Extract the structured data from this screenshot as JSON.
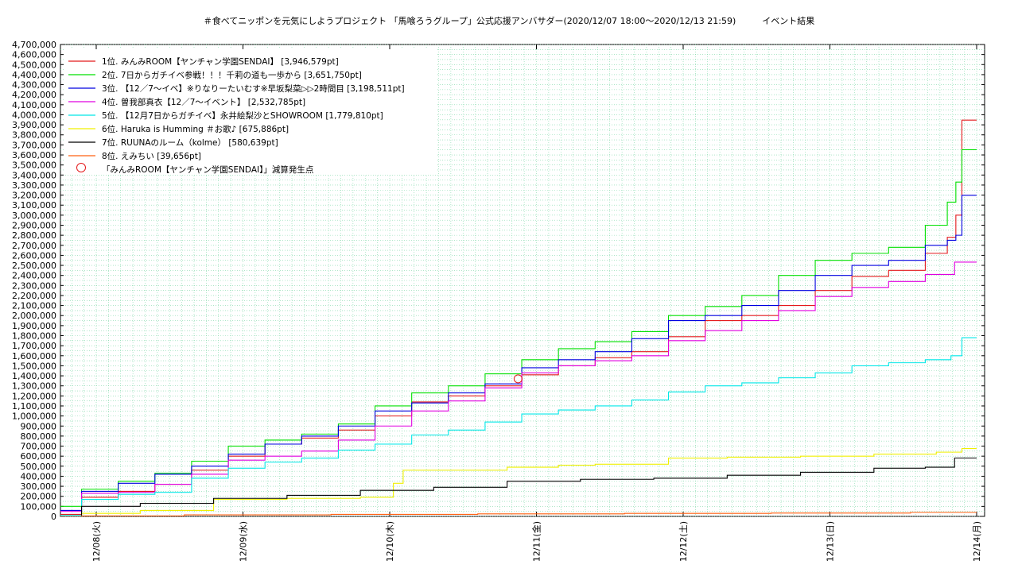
{
  "title": "＃食べてニッポンを元気にしようプロジェクト 「馬喰ろうグループ」公式応援アンバサダー(2020/12/07 18:00〜2020/12/13 21:59)　　　イベント結果",
  "chart_data": {
    "type": "line",
    "title": "＃食べてニッポンを元気にしようプロジェクト 「馬喰ろうグループ」公式応援アンバサダー(2020/12/07 18:00〜2020/12/13 21:59)　　　イベント結果",
    "xlabel": "",
    "ylabel": "",
    "xlim": [
      "2020-12-07 18:00",
      "2020-12-14 00:00"
    ],
    "ylim": [
      0,
      4700000
    ],
    "y_ticks": [
      0,
      100000,
      200000,
      300000,
      400000,
      500000,
      600000,
      700000,
      800000,
      900000,
      1000000,
      1100000,
      1200000,
      1300000,
      1400000,
      1500000,
      1600000,
      1700000,
      1800000,
      1900000,
      2000000,
      2100000,
      2200000,
      2300000,
      2400000,
      2500000,
      2600000,
      2700000,
      2800000,
      2900000,
      3000000,
      3100000,
      3200000,
      3300000,
      3400000,
      3500000,
      3600000,
      3700000,
      3800000,
      3900000,
      4000000,
      4100000,
      4200000,
      4300000,
      4400000,
      4500000,
      4600000,
      4700000
    ],
    "y_tick_labels": [
      "0",
      "100,000",
      "200,000",
      "300,000",
      "400,000",
      "500,000",
      "600,000",
      "700,000",
      "800,000",
      "900,000",
      "1,000,000",
      "1,100,000",
      "1,200,000",
      "1,300,000",
      "1,400,000",
      "1,500,000",
      "1,600,000",
      "1,700,000",
      "1,800,000",
      "1,900,000",
      "2,000,000",
      "2,100,000",
      "2,200,000",
      "2,300,000",
      "2,400,000",
      "2,500,000",
      "2,600,000",
      "2,700,000",
      "2,800,000",
      "2,900,000",
      "3,000,000",
      "3,100,000",
      "3,200,000",
      "3,300,000",
      "3,400,000",
      "3,500,000",
      "3,600,000",
      "3,700,000",
      "3,800,000",
      "3,900,000",
      "4,000,000",
      "4,100,000",
      "4,200,000",
      "4,300,000",
      "4,400,000",
      "4,500,000",
      "4,600,000",
      "4,700,000"
    ],
    "x_ticks": [
      {
        "x": "2020-12-08 00:00",
        "label": "12/08(火)"
      },
      {
        "x": "2020-12-09 00:00",
        "label": "12/09(水)"
      },
      {
        "x": "2020-12-10 00:00",
        "label": "12/10(木)"
      },
      {
        "x": "2020-12-11 00:00",
        "label": "12/11(金)"
      },
      {
        "x": "2020-12-12 00:00",
        "label": "12/12(土)"
      },
      {
        "x": "2020-12-13 00:00",
        "label": "12/13(日)"
      },
      {
        "x": "2020-12-14 00:00",
        "label": "12/14(月)"
      }
    ],
    "grid": true,
    "legend_position": "top-left",
    "series": [
      {
        "name": "1位. みんみROOM【ヤンチャン学園SENDAI】 [3,946,579pt]",
        "color": "#e41a1c",
        "x": [
          "2020-12-07 18:00",
          "2020-12-08 00:00",
          "2020-12-08 06:00",
          "2020-12-08 12:00",
          "2020-12-08 18:00",
          "2020-12-09 00:00",
          "2020-12-09 06:00",
          "2020-12-09 12:00",
          "2020-12-09 18:00",
          "2020-12-10 00:00",
          "2020-12-10 06:00",
          "2020-12-10 12:00",
          "2020-12-10 18:00",
          "2020-12-11 00:00",
          "2020-12-11 06:00",
          "2020-12-11 12:00",
          "2020-12-11 18:00",
          "2020-12-12 00:00",
          "2020-12-12 06:00",
          "2020-12-12 12:00",
          "2020-12-12 18:00",
          "2020-12-13 00:00",
          "2020-12-13 06:00",
          "2020-12-13 12:00",
          "2020-12-13 18:00",
          "2020-12-13 20:00",
          "2020-12-13 21:00",
          "2020-12-13 21:59",
          "2020-12-14 00:00"
        ],
        "y": [
          20000,
          190000,
          250000,
          320000,
          460000,
          600000,
          720000,
          780000,
          860000,
          1000000,
          1140000,
          1200000,
          1300000,
          1410000,
          1500000,
          1580000,
          1640000,
          1790000,
          1950000,
          2000000,
          2100000,
          2250000,
          2390000,
          2450000,
          2620000,
          2780000,
          3000000,
          3946579,
          3946579
        ]
      },
      {
        "name": "2位. 7日からガチイベ参戦！！！千莉の道も一歩から [3,651,750pt]",
        "color": "#00e000",
        "x": [
          "2020-12-07 18:00",
          "2020-12-08 00:00",
          "2020-12-08 06:00",
          "2020-12-08 12:00",
          "2020-12-08 18:00",
          "2020-12-09 00:00",
          "2020-12-09 06:00",
          "2020-12-09 12:00",
          "2020-12-09 18:00",
          "2020-12-10 00:00",
          "2020-12-10 06:00",
          "2020-12-10 12:00",
          "2020-12-10 18:00",
          "2020-12-11 00:00",
          "2020-12-11 06:00",
          "2020-12-11 12:00",
          "2020-12-11 18:00",
          "2020-12-12 00:00",
          "2020-12-12 06:00",
          "2020-12-12 12:00",
          "2020-12-12 18:00",
          "2020-12-13 00:00",
          "2020-12-13 06:00",
          "2020-12-13 12:00",
          "2020-12-13 18:00",
          "2020-12-13 20:00",
          "2020-12-13 21:00",
          "2020-12-13 21:59",
          "2020-12-14 00:00"
        ],
        "y": [
          100000,
          270000,
          350000,
          430000,
          550000,
          700000,
          760000,
          820000,
          920000,
          1100000,
          1230000,
          1300000,
          1420000,
          1560000,
          1670000,
          1740000,
          1840000,
          2000000,
          2090000,
          2200000,
          2400000,
          2550000,
          2620000,
          2680000,
          2900000,
          3130000,
          3330000,
          3651750,
          3651750
        ]
      },
      {
        "name": "3位. 【12／7〜イベ】※りなりーたいむす※早坂梨菜▷▷2時間目 [3,198,511pt]",
        "color": "#0000e0",
        "x": [
          "2020-12-07 18:00",
          "2020-12-08 00:00",
          "2020-12-08 06:00",
          "2020-12-08 12:00",
          "2020-12-08 18:00",
          "2020-12-09 00:00",
          "2020-12-09 06:00",
          "2020-12-09 12:00",
          "2020-12-09 18:00",
          "2020-12-10 00:00",
          "2020-12-10 06:00",
          "2020-12-10 12:00",
          "2020-12-10 18:00",
          "2020-12-11 00:00",
          "2020-12-11 06:00",
          "2020-12-11 12:00",
          "2020-12-11 18:00",
          "2020-12-12 00:00",
          "2020-12-12 06:00",
          "2020-12-12 12:00",
          "2020-12-12 18:00",
          "2020-12-13 00:00",
          "2020-12-13 06:00",
          "2020-12-13 12:00",
          "2020-12-13 18:00",
          "2020-12-13 20:00",
          "2020-12-13 21:00",
          "2020-12-13 21:59",
          "2020-12-14 00:00"
        ],
        "y": [
          60000,
          250000,
          330000,
          420000,
          500000,
          620000,
          720000,
          800000,
          900000,
          1050000,
          1130000,
          1230000,
          1320000,
          1480000,
          1560000,
          1640000,
          1770000,
          1950000,
          2000000,
          2100000,
          2250000,
          2400000,
          2500000,
          2550000,
          2700000,
          2750000,
          2800000,
          3198511,
          3198511
        ]
      },
      {
        "name": "4位. 曽我部真衣【12／7〜イベント】 [2,532,785pt]",
        "color": "#e000e0",
        "x": [
          "2020-12-07 18:00",
          "2020-12-08 00:00",
          "2020-12-08 06:00",
          "2020-12-08 12:00",
          "2020-12-08 18:00",
          "2020-12-09 00:00",
          "2020-12-09 06:00",
          "2020-12-09 12:00",
          "2020-12-09 18:00",
          "2020-12-10 00:00",
          "2020-12-10 06:00",
          "2020-12-10 12:00",
          "2020-12-10 18:00",
          "2020-12-11 00:00",
          "2020-12-11 06:00",
          "2020-12-11 12:00",
          "2020-12-11 18:00",
          "2020-12-12 00:00",
          "2020-12-12 06:00",
          "2020-12-12 12:00",
          "2020-12-12 18:00",
          "2020-12-13 00:00",
          "2020-12-13 06:00",
          "2020-12-13 12:00",
          "2020-12-13 18:00",
          "2020-12-13 21:59",
          "2020-12-14 00:00"
        ],
        "y": [
          50000,
          230000,
          240000,
          320000,
          420000,
          560000,
          600000,
          650000,
          760000,
          900000,
          1050000,
          1150000,
          1280000,
          1430000,
          1500000,
          1550000,
          1600000,
          1750000,
          1850000,
          1950000,
          2050000,
          2190000,
          2280000,
          2340000,
          2410000,
          2532785,
          2532785
        ]
      },
      {
        "name": "5位. 【12月7日からガチイベ】永井絵梨沙とSHOWROOM [1,779,810pt]",
        "color": "#00e8e8",
        "x": [
          "2020-12-07 18:00",
          "2020-12-08 00:00",
          "2020-12-08 06:00",
          "2020-12-08 12:00",
          "2020-12-08 18:00",
          "2020-12-09 00:00",
          "2020-12-09 06:00",
          "2020-12-09 12:00",
          "2020-12-09 18:00",
          "2020-12-10 00:00",
          "2020-12-10 06:00",
          "2020-12-10 12:00",
          "2020-12-10 18:00",
          "2020-12-11 00:00",
          "2020-12-11 06:00",
          "2020-12-11 12:00",
          "2020-12-11 18:00",
          "2020-12-12 00:00",
          "2020-12-12 06:00",
          "2020-12-12 12:00",
          "2020-12-12 18:00",
          "2020-12-13 00:00",
          "2020-12-13 06:00",
          "2020-12-13 12:00",
          "2020-12-13 18:00",
          "2020-12-13 21:00",
          "2020-12-13 21:59",
          "2020-12-14 00:00"
        ],
        "y": [
          10000,
          170000,
          220000,
          240000,
          380000,
          480000,
          540000,
          580000,
          660000,
          720000,
          810000,
          860000,
          940000,
          1020000,
          1060000,
          1100000,
          1160000,
          1240000,
          1300000,
          1330000,
          1380000,
          1430000,
          1500000,
          1530000,
          1560000,
          1600000,
          1779810,
          1779810
        ]
      },
      {
        "name": "6位. Haruka is Humming ＃お歌♪ [675,886pt]",
        "color": "#f0f000",
        "x": [
          "2020-12-07 18:00",
          "2020-12-08 00:00",
          "2020-12-08 12:00",
          "2020-12-09 00:00",
          "2020-12-09 12:00",
          "2020-12-10 00:00",
          "2020-12-10 01:00",
          "2020-12-10 03:00",
          "2020-12-10 12:00",
          "2020-12-11 00:00",
          "2020-12-11 06:00",
          "2020-12-11 12:00",
          "2020-12-11 18:00",
          "2020-12-12 00:00",
          "2020-12-12 12:00",
          "2020-12-13 00:00",
          "2020-12-13 12:00",
          "2020-12-13 21:00",
          "2020-12-13 21:59",
          "2020-12-14 00:00"
        ],
        "y": [
          0,
          30000,
          60000,
          170000,
          180000,
          190000,
          330000,
          460000,
          460000,
          490000,
          510000,
          520000,
          520000,
          580000,
          590000,
          600000,
          620000,
          640000,
          675886,
          675886
        ]
      },
      {
        "name": "7位. RUUNAのルーム（kolme） [580,639pt]",
        "color": "#000000",
        "x": [
          "2020-12-07 18:00",
          "2020-12-08 00:00",
          "2020-12-08 12:00",
          "2020-12-09 00:00",
          "2020-12-09 12:00",
          "2020-12-10 00:00",
          "2020-12-10 12:00",
          "2020-12-11 00:00",
          "2020-12-11 12:00",
          "2020-12-12 00:00",
          "2020-12-12 12:00",
          "2020-12-13 00:00",
          "2020-12-13 12:00",
          "2020-12-13 18:00",
          "2020-12-13 21:59",
          "2020-12-14 00:00"
        ],
        "y": [
          0,
          100000,
          130000,
          180000,
          210000,
          260000,
          290000,
          350000,
          370000,
          380000,
          410000,
          440000,
          480000,
          490000,
          580639,
          580639
        ]
      },
      {
        "name": "8位. えみちい [39,656pt]",
        "color": "#ff6010",
        "x": [
          "2020-12-07 18:00",
          "2020-12-08 00:00",
          "2020-12-09 00:00",
          "2020-12-10 00:00",
          "2020-12-11 00:00",
          "2020-12-12 00:00",
          "2020-12-13 00:00",
          "2020-12-13 21:59",
          "2020-12-14 00:00"
        ],
        "y": [
          0,
          5000,
          15000,
          20000,
          25000,
          30000,
          33000,
          39656,
          39656
        ]
      }
    ],
    "markers": [
      {
        "name": "「みんみROOM【ヤンチャン学園SENDAI】」減算発生点",
        "color": "#e41a1c",
        "x": "2020-12-10 21:00",
        "y": 1370000
      }
    ]
  }
}
